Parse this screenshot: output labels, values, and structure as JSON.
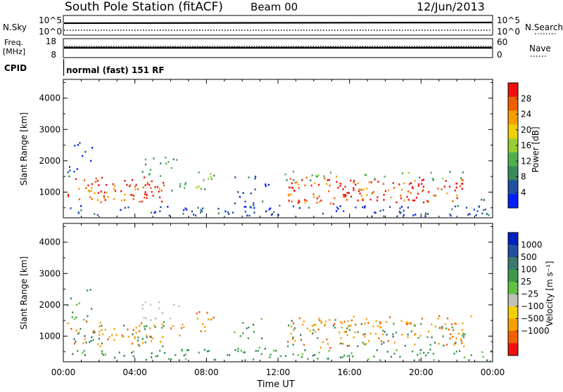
{
  "header": {
    "station": "South Pole Station (fitACF)",
    "beam": "Beam 00",
    "date": "12/Jun/2013"
  },
  "top_panels": {
    "nsky_label": "N.Sky",
    "nsky_ticks": [
      "10^5",
      "10^0"
    ],
    "nsearch_label": "N.Search",
    "nsearch_ticks": [
      "10^5",
      "10^0"
    ],
    "freq_label_line1": "Freq.",
    "freq_label_line2": "[MHz]",
    "freq_ticks": [
      "18",
      "8"
    ],
    "nave_label": "Nave",
    "nave_ticks": [
      "60",
      "0"
    ],
    "cpid_label": "CPID",
    "cpid_text": "normal (fast) 151 RF"
  },
  "colors": {
    "power_scale": [
      "#0020ff",
      "#2050a0",
      "#3a8a5a",
      "#50b050",
      "#9acd32",
      "#f0d000",
      "#f5a000",
      "#f06000",
      "#f01010"
    ],
    "velocity_scale": [
      "#0020c0",
      "#2050a0",
      "#3a7a70",
      "#3c9a4a",
      "#60c040",
      "#c0c0b8",
      "#f0d000",
      "#f5a000",
      "#f06000",
      "#f01010"
    ]
  },
  "chart_data": [
    {
      "type": "heatmap",
      "name_hint": "power panel",
      "xlabel": "",
      "ylabel": "Slant Range [km]",
      "x_tick_labels": [
        "00:00",
        "04:00",
        "08:00",
        "12:00",
        "16:00",
        "20:00",
        "00:00"
      ],
      "y_ticks": [
        1000,
        2000,
        3000,
        4000
      ],
      "y_tick_labels": [
        "1000",
        "2000",
        "3000",
        "4000"
      ],
      "ylim": [
        180,
        4600
      ],
      "xlim_hours": [
        0,
        24
      ],
      "colorbar_label": "Power [dB]",
      "colorbar_ticks": [
        "4",
        "8",
        "12",
        "16",
        "20",
        "24",
        "28"
      ],
      "colorbar_range": [
        0,
        32
      ]
    },
    {
      "type": "heatmap",
      "name_hint": "velocity panel",
      "xlabel": "Time UT",
      "ylabel": "Slant Range [km]",
      "x_tick_labels": [
        "00:00",
        "04:00",
        "08:00",
        "12:00",
        "16:00",
        "20:00",
        "00:00"
      ],
      "y_ticks": [
        1000,
        2000,
        3000,
        4000
      ],
      "y_tick_labels": [
        "1000",
        "2000",
        "3000",
        "4000"
      ],
      "ylim": [
        180,
        4600
      ],
      "xlim_hours": [
        0,
        24
      ],
      "colorbar_label": "Velocity [m s⁻¹]",
      "colorbar_ticks": [
        "1000",
        "500",
        "100",
        "25",
        "−25",
        "−100",
        "−500",
        "−1000"
      ]
    }
  ]
}
